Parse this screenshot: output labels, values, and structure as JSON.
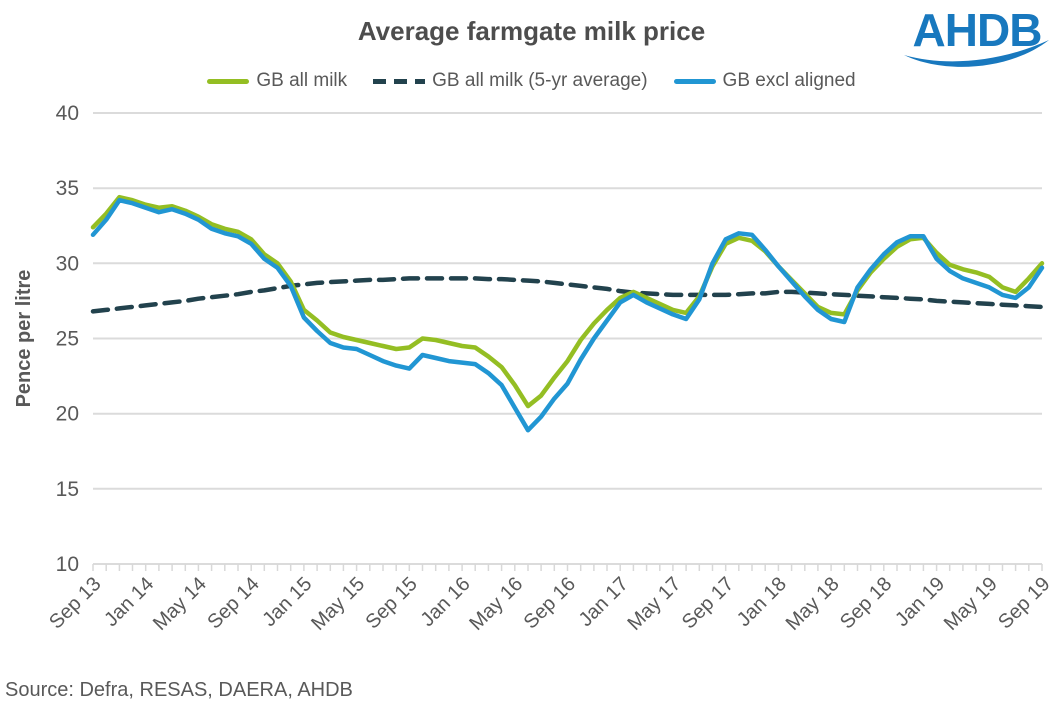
{
  "header": {
    "logo_text": "AHDB",
    "logo_color": "#1878BE"
  },
  "legend": [
    {
      "label": "GB all milk",
      "color": "#94BE23",
      "style": "solid"
    },
    {
      "label": "GB all milk (5-yr average)",
      "color": "#22424D",
      "style": "dashed"
    },
    {
      "label": "GB excl aligned",
      "color": "#2196D3",
      "style": "solid"
    }
  ],
  "source_text": "Source: Defra, RESAS, DAERA, AHDB",
  "chart_data": {
    "type": "line",
    "title": "Average farmgate milk price",
    "xlabel": "",
    "ylabel": "Pence per litre",
    "ylim": [
      10,
      40
    ],
    "ytick_step": 5,
    "grid": true,
    "legend_position": "top",
    "x_frequency": "monthly",
    "x_range": [
      "Sep 2013",
      "Sep 2019"
    ],
    "n_points": 73,
    "xtick_every": 4,
    "xtick_labels": [
      "Sep 13",
      "Jan 14",
      "May 14",
      "Sep 14",
      "Jan 15",
      "May 15",
      "Sep 15",
      "Jan 16",
      "May 16",
      "Sep 16",
      "Jan 17",
      "May 17",
      "Sep 17",
      "Jan 18",
      "May 18",
      "Sep 18",
      "Jan 19",
      "May 19",
      "Sep 19"
    ],
    "series": [
      {
        "name": "GB all milk (5-yr average)",
        "color": "#22424D",
        "dash": true,
        "values": [
          26.8,
          26.9,
          27.0,
          27.1,
          27.2,
          27.3,
          27.4,
          27.5,
          27.65,
          27.75,
          27.85,
          27.95,
          28.1,
          28.2,
          28.35,
          28.5,
          28.6,
          28.7,
          28.75,
          28.8,
          28.85,
          28.9,
          28.9,
          28.95,
          29.0,
          29.0,
          29.0,
          29.0,
          29.0,
          29.0,
          28.95,
          28.95,
          28.9,
          28.85,
          28.8,
          28.7,
          28.6,
          28.5,
          28.4,
          28.3,
          28.15,
          28.05,
          28.0,
          27.95,
          27.9,
          27.9,
          27.9,
          27.9,
          27.9,
          27.95,
          28.0,
          28.0,
          28.1,
          28.1,
          28.05,
          28.0,
          27.95,
          27.9,
          27.85,
          27.8,
          27.75,
          27.7,
          27.65,
          27.6,
          27.5,
          27.45,
          27.4,
          27.35,
          27.3,
          27.25,
          27.2,
          27.15,
          27.1
        ]
      },
      {
        "name": "GB all milk",
        "color": "#94BE23",
        "dash": false,
        "values": [
          32.4,
          33.3,
          34.4,
          34.2,
          33.9,
          33.7,
          33.8,
          33.5,
          33.1,
          32.6,
          32.3,
          32.1,
          31.6,
          30.6,
          30.0,
          28.8,
          26.9,
          26.2,
          25.4,
          25.1,
          24.9,
          24.7,
          24.5,
          24.3,
          24.4,
          25.0,
          24.9,
          24.7,
          24.5,
          24.4,
          23.8,
          23.1,
          21.9,
          20.5,
          21.2,
          22.4,
          23.5,
          24.9,
          26.0,
          26.9,
          27.7,
          28.1,
          27.7,
          27.3,
          26.9,
          26.7,
          27.8,
          29.8,
          31.3,
          31.7,
          31.5,
          30.8,
          29.8,
          28.9,
          28.0,
          27.1,
          26.7,
          26.6,
          28.2,
          29.4,
          30.3,
          31.1,
          31.6,
          31.7,
          30.7,
          29.9,
          29.6,
          29.4,
          29.1,
          28.4,
          28.1,
          29.0,
          30.0
        ]
      },
      {
        "name": "GB excl aligned",
        "color": "#2196D3",
        "dash": false,
        "values": [
          31.9,
          32.9,
          34.2,
          34.0,
          33.7,
          33.4,
          33.6,
          33.3,
          32.9,
          32.3,
          32.0,
          31.8,
          31.3,
          30.3,
          29.7,
          28.5,
          26.4,
          25.5,
          24.7,
          24.4,
          24.3,
          23.9,
          23.5,
          23.2,
          23.0,
          23.9,
          23.7,
          23.5,
          23.4,
          23.3,
          22.7,
          21.9,
          20.4,
          18.9,
          19.8,
          21.0,
          22.0,
          23.6,
          25.0,
          26.2,
          27.4,
          27.9,
          27.4,
          27.0,
          26.6,
          26.3,
          27.6,
          30.0,
          31.6,
          32.0,
          31.9,
          30.9,
          29.8,
          28.8,
          27.8,
          26.9,
          26.3,
          26.1,
          28.4,
          29.6,
          30.6,
          31.4,
          31.8,
          31.8,
          30.3,
          29.5,
          29.0,
          28.7,
          28.4,
          27.9,
          27.7,
          28.4,
          29.7
        ]
      }
    ]
  }
}
